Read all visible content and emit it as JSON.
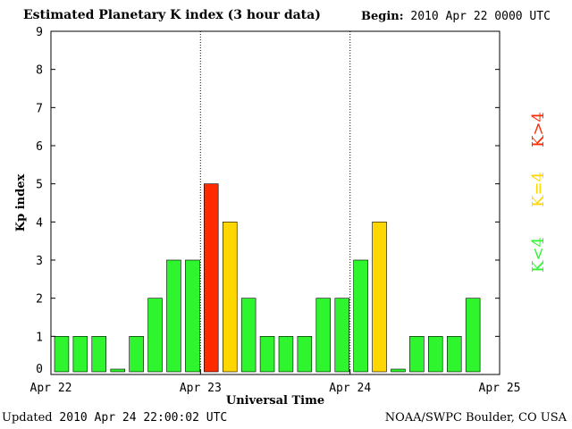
{
  "header": {
    "title": "Estimated Planetary K index (3 hour data)",
    "begin_label": "Begin:",
    "begin_value": "2010 Apr 22 0000 UTC"
  },
  "footer": {
    "updated_label": "Updated",
    "updated_value": "2010 Apr 24 22:00:02 UTC",
    "credit": "NOAA/SWPC Boulder, CO USA"
  },
  "colors": {
    "low": "#2ff52f",
    "moderate": "#ffd700",
    "high": "#ff2a00"
  },
  "chart_data": {
    "type": "bar",
    "title": "Estimated Planetary K index (3 hour data)",
    "xlabel": "Universal Time",
    "ylabel": "Kp index",
    "ylim": [
      0,
      9
    ],
    "yticks": [
      0,
      1,
      2,
      3,
      4,
      5,
      6,
      7,
      8,
      9
    ],
    "xticks": [
      "Apr 22",
      "Apr 23",
      "Apr 24",
      "Apr 25"
    ],
    "grid": false,
    "day_separators": [
      "Apr 23",
      "Apr 24"
    ],
    "legend": [
      "K<4",
      "K=4",
      "K>4"
    ],
    "legend_position": "right",
    "bars_per_day": 8,
    "values": [
      1,
      1,
      1,
      0,
      1,
      2,
      3,
      3,
      5,
      4,
      2,
      1,
      1,
      1,
      2,
      2,
      3,
      4,
      0,
      1,
      1,
      1,
      2
    ]
  }
}
